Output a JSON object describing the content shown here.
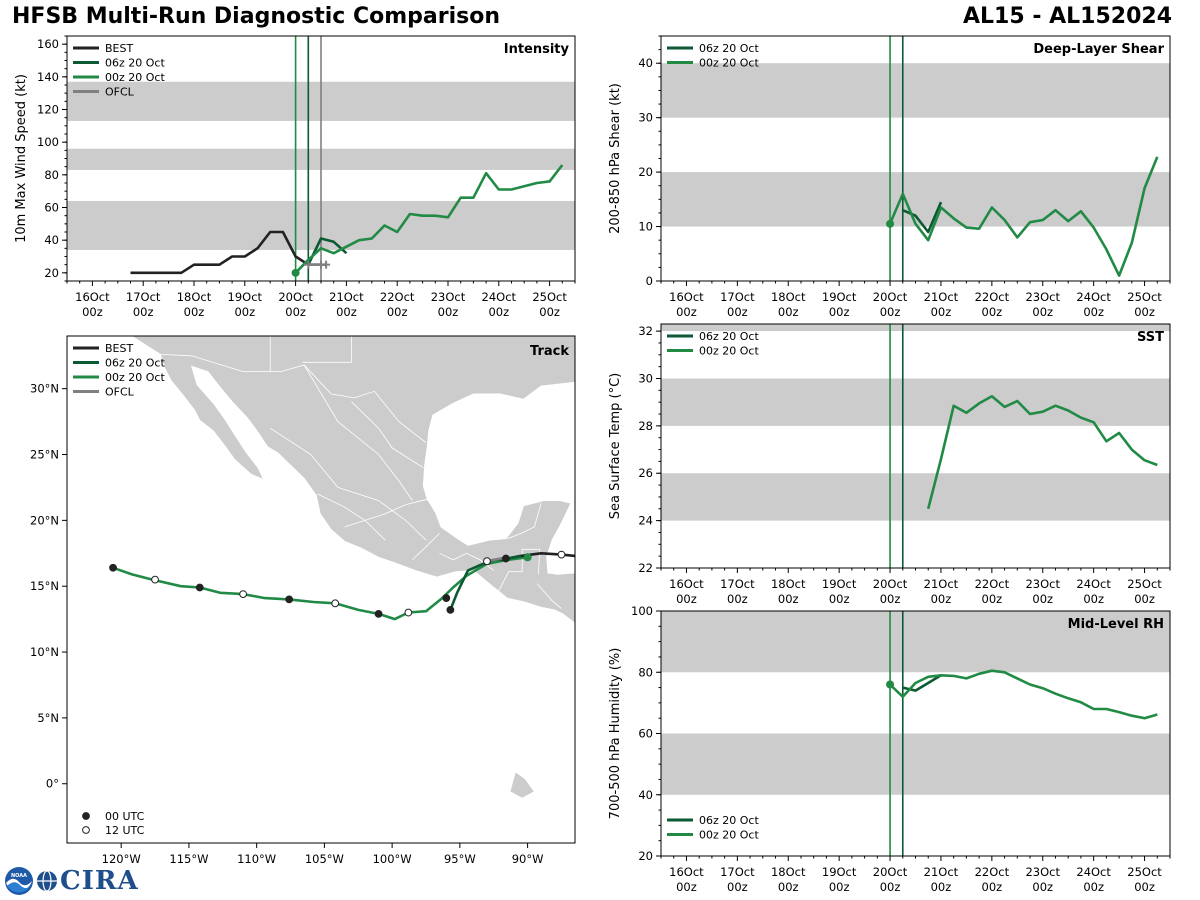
{
  "header": {
    "title": "HFSB Multi-Run Diagnostic Comparison",
    "storm": "AL15 - AL152024"
  },
  "logos": {
    "noaa_label": "NOAA",
    "cira_label": "CIRA"
  },
  "colors": {
    "best": "#222222",
    "run06": "#0b5a33",
    "run00": "#218a45",
    "ofcl": "#808080",
    "band": "#cccccc",
    "land": "#cccccc"
  },
  "time_axis": {
    "ticks": [
      16,
      17,
      18,
      19,
      20,
      21,
      22,
      23,
      24,
      25
    ],
    "tick_labels": [
      "16Oct\n00z",
      "17Oct\n00z",
      "18Oct\n00z",
      "19Oct\n00z",
      "20Oct\n00z",
      "21Oct\n00z",
      "22Oct\n00z",
      "23Oct\n00z",
      "24Oct\n00z",
      "25Oct\n00z"
    ],
    "xlim": [
      15.5,
      25.5
    ]
  },
  "legend_labels": {
    "best": "BEST",
    "run06": "06z 20 Oct",
    "run00": "00z 20 Oct",
    "ofcl": "OFCL",
    "utc00": "00 UTC",
    "utc12": "12 UTC"
  },
  "chart_data": [
    {
      "id": "intensity",
      "type": "line",
      "title": "Intensity",
      "ylabel": "10m Max Wind Speed (kt)",
      "ylim": [
        15,
        165
      ],
      "yticks": [
        20,
        40,
        60,
        80,
        100,
        120,
        140,
        160
      ],
      "bands": [
        [
          34,
          64
        ],
        [
          83,
          96
        ],
        [
          113,
          137
        ]
      ],
      "vlines": [
        {
          "x": 20.0,
          "series": "run00"
        },
        {
          "x": 20.25,
          "series": "run06"
        },
        {
          "x": 20.5,
          "series": "ofcl"
        }
      ],
      "legend": [
        "best",
        "run06",
        "run00",
        "ofcl"
      ],
      "series": [
        {
          "key": "best",
          "name": "BEST",
          "x": [
            16.75,
            17.0,
            17.25,
            17.5,
            17.75,
            18.0,
            18.25,
            18.5,
            18.75,
            19.0,
            19.25,
            19.5,
            19.75,
            20.0,
            20.25,
            20.5
          ],
          "y": [
            20,
            20,
            20,
            20,
            20,
            25,
            25,
            25,
            30,
            30,
            35,
            45,
            45,
            30,
            25,
            25
          ]
        },
        {
          "key": "run06",
          "name": "06z 20 Oct",
          "x": [
            20.25,
            20.5,
            20.75,
            21.0
          ],
          "y": [
            25,
            41,
            39,
            32
          ]
        },
        {
          "key": "run00",
          "name": "00z 20 Oct",
          "x": [
            20.0,
            20.25,
            20.5,
            20.75,
            21.0,
            21.25,
            21.5,
            21.75,
            22.0,
            22.25,
            22.5,
            22.75,
            23.0,
            23.25,
            23.5,
            23.75,
            24.0,
            24.25,
            24.5,
            24.75,
            25.0,
            25.25
          ],
          "y": [
            20,
            28,
            35,
            32,
            36,
            40,
            41,
            49,
            45,
            56,
            55,
            55,
            54,
            66,
            66,
            81,
            71,
            71,
            73,
            75,
            76,
            86
          ]
        },
        {
          "key": "ofcl",
          "name": "OFCL",
          "x": [
            20.25,
            20.5,
            20.6
          ],
          "y": [
            25,
            25,
            25
          ]
        }
      ],
      "start_marker": {
        "series": "run00",
        "x": 20.0,
        "y": 20
      }
    },
    {
      "id": "shear",
      "type": "line",
      "title": "Deep-Layer Shear",
      "ylabel": "200-850 hPa Shear (kt)",
      "ylim": [
        0,
        45
      ],
      "yticks": [
        0,
        10,
        20,
        30,
        40
      ],
      "bands": [
        [
          10,
          20
        ],
        [
          30,
          40
        ]
      ],
      "vlines": [
        {
          "x": 20.0,
          "series": "run00"
        },
        {
          "x": 20.25,
          "series": "run06"
        }
      ],
      "legend": [
        "run06",
        "run00"
      ],
      "series": [
        {
          "key": "run06",
          "name": "06z 20 Oct",
          "x": [
            20.25,
            20.5,
            20.75,
            21.0
          ],
          "y": [
            13,
            12,
            9,
            14.5
          ]
        },
        {
          "key": "run00",
          "name": "00z 20 Oct",
          "x": [
            20.0,
            20.25,
            20.5,
            20.75,
            21.0,
            21.25,
            21.5,
            21.75,
            22.0,
            22.25,
            22.5,
            22.75,
            23.0,
            23.25,
            23.5,
            23.75,
            24.0,
            24.25,
            24.5,
            24.75,
            25.0,
            25.25
          ],
          "y": [
            10.5,
            16,
            10.5,
            7.5,
            13.5,
            11.5,
            9.8,
            9.6,
            13.5,
            11.2,
            8,
            10.8,
            11.2,
            13,
            11,
            12.8,
            9.8,
            5.8,
            1,
            7,
            17,
            22.8
          ]
        }
      ],
      "start_marker": {
        "series": "run00",
        "x": 20.0,
        "y": 10.5
      }
    },
    {
      "id": "sst",
      "type": "line",
      "title": "SST",
      "ylabel": "Sea Surface Temp (°C)",
      "ylim": [
        22,
        32.3
      ],
      "yticks": [
        22,
        24,
        26,
        28,
        30,
        32
      ],
      "bands": [
        [
          24,
          26
        ],
        [
          28,
          30
        ],
        [
          32,
          33
        ]
      ],
      "vlines": [
        {
          "x": 20.0,
          "series": "run00"
        },
        {
          "x": 20.25,
          "series": "run06"
        }
      ],
      "legend": [
        "run06",
        "run00"
      ],
      "series": [
        {
          "key": "run00",
          "name": "00z 20 Oct",
          "x": [
            20.75,
            21.0,
            21.25,
            21.5,
            21.75,
            22.0,
            22.25,
            22.5,
            22.75,
            23.0,
            23.25,
            23.5,
            23.75,
            24.0,
            24.25,
            24.5,
            24.75,
            25.0,
            25.25
          ],
          "y": [
            24.5,
            26.6,
            28.85,
            28.55,
            28.95,
            29.25,
            28.8,
            29.05,
            28.5,
            28.6,
            28.85,
            28.65,
            28.35,
            28.15,
            27.35,
            27.7,
            27.0,
            26.55,
            26.35
          ]
        }
      ]
    },
    {
      "id": "rh",
      "type": "line",
      "title": "Mid-Level RH",
      "ylabel": "700-500 hPa Humidity (%)",
      "ylim": [
        20,
        100
      ],
      "yticks": [
        20,
        40,
        60,
        80,
        100
      ],
      "bands": [
        [
          40,
          60
        ],
        [
          80,
          100
        ]
      ],
      "vlines": [
        {
          "x": 20.0,
          "series": "run00"
        },
        {
          "x": 20.25,
          "series": "run06"
        }
      ],
      "legend": [
        "run06",
        "run00"
      ],
      "series": [
        {
          "key": "run06",
          "name": "06z 20 Oct",
          "x": [
            20.25,
            20.5,
            20.75,
            21.0
          ],
          "y": [
            75,
            74,
            76.5,
            79
          ]
        },
        {
          "key": "run00",
          "name": "00z 20 Oct",
          "x": [
            20.0,
            20.25,
            20.5,
            20.75,
            21.0,
            21.25,
            21.5,
            21.75,
            22.0,
            22.25,
            22.5,
            22.75,
            23.0,
            23.25,
            23.5,
            23.75,
            24.0,
            24.25,
            24.5,
            24.75,
            25.0,
            25.25
          ],
          "y": [
            76,
            72,
            76.5,
            78.5,
            79,
            78.8,
            78,
            79.5,
            80.5,
            80,
            78,
            76,
            74.8,
            73,
            71.5,
            70.2,
            68,
            68,
            67,
            65.8,
            65,
            66.2
          ]
        }
      ],
      "start_marker": {
        "series": "run00",
        "x": 20.0,
        "y": 76
      }
    },
    {
      "id": "track",
      "type": "scatter",
      "title": "Track",
      "xlim": [
        -124,
        -86.5
      ],
      "ylim": [
        -4.5,
        34
      ],
      "xticks": [
        -120,
        -115,
        -110,
        -105,
        -100,
        -95,
        -90
      ],
      "xtick_labels": [
        "120°W",
        "115°W",
        "110°W",
        "105°W",
        "100°W",
        "95°W",
        "90°W"
      ],
      "yticks": [
        0,
        5,
        10,
        15,
        20,
        25,
        30
      ],
      "ytick_labels": [
        "0°",
        "5°N",
        "10°N",
        "15°N",
        "20°N",
        "25°N",
        "30°N"
      ],
      "legend": [
        "best",
        "run06",
        "run00",
        "ofcl"
      ],
      "series": [
        {
          "key": "best",
          "name": "BEST",
          "lon": [
            -86.5,
            -87.5,
            -89,
            -90.5,
            -92
          ],
          "lat": [
            17.3,
            17.4,
            17.5,
            17.3,
            17.0
          ]
        },
        {
          "key": "run06",
          "name": "06z 20 Oct",
          "lon": [
            -90.5,
            -91.5,
            -92.5,
            -93.5,
            -94.4,
            -95.2,
            -95.7
          ],
          "lat": [
            17.3,
            17.1,
            17.0,
            16.6,
            16.2,
            14.5,
            13.2
          ]
        },
        {
          "key": "run00",
          "name": "00z 20 Oct",
          "lon": [
            -90,
            -91.5,
            -93,
            -94.5,
            -95.5,
            -96.3,
            -97.5,
            -98.8,
            -99.8,
            -101,
            -102.5,
            -104.2,
            -105.8,
            -107.6,
            -109.4,
            -111,
            -112.7,
            -114.2,
            -115.6,
            -117.7,
            -119.2,
            -120.6
          ],
          "lat": [
            17.2,
            17.0,
            16.7,
            15.8,
            14.9,
            14.1,
            13.1,
            13.0,
            12.5,
            12.9,
            13.2,
            13.7,
            13.8,
            14.0,
            14.1,
            14.4,
            14.5,
            14.9,
            15.0,
            15.5,
            15.9,
            16.4
          ]
        },
        {
          "key": "ofcl",
          "name": "OFCL",
          "lon": [
            -91.5,
            -92.5,
            -93.2
          ],
          "lat": [
            17.2,
            17.0,
            16.9
          ]
        }
      ],
      "markers": [
        {
          "lon": -120.6,
          "lat": 16.4,
          "type": "00"
        },
        {
          "lon": -117.5,
          "lat": 15.5,
          "type": "12"
        },
        {
          "lon": -114.2,
          "lat": 14.9,
          "type": "00"
        },
        {
          "lon": -111.0,
          "lat": 14.4,
          "type": "12"
        },
        {
          "lon": -107.6,
          "lat": 14.0,
          "type": "00"
        },
        {
          "lon": -104.2,
          "lat": 13.7,
          "type": "12"
        },
        {
          "lon": -101.0,
          "lat": 12.9,
          "type": "00"
        },
        {
          "lon": -98.8,
          "lat": 13.0,
          "type": "12"
        },
        {
          "lon": -95.7,
          "lat": 13.2,
          "type": "00"
        },
        {
          "lon": -96.0,
          "lat": 14.1,
          "type": "00"
        },
        {
          "lon": -93.0,
          "lat": 16.9,
          "type": "12"
        },
        {
          "lon": -91.6,
          "lat": 17.1,
          "type": "00"
        },
        {
          "lon": -90.0,
          "lat": 17.2,
          "type": "00"
        },
        {
          "lon": -87.5,
          "lat": 17.4,
          "type": "12"
        }
      ],
      "current_position": {
        "lon": -90.0,
        "lat": 17.2
      }
    }
  ]
}
